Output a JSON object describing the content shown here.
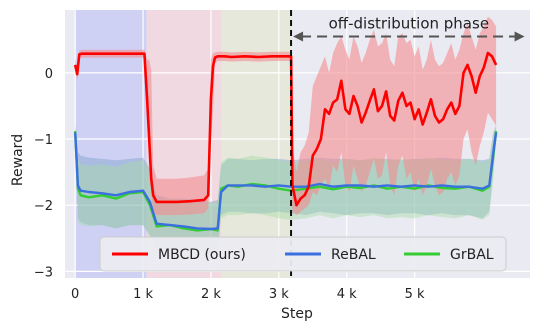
{
  "chart_data": {
    "type": "line",
    "xlabel": "Step",
    "ylabel": "Reward",
    "xlim": [
      -150,
      6700
    ],
    "ylim": [
      -3.1,
      0.95
    ],
    "xticks": [
      0,
      1000,
      2000,
      3000,
      4000,
      5000
    ],
    "xtick_labels": [
      "0",
      "1 k",
      "2 k",
      "3 k",
      "4 k",
      "5 k"
    ],
    "yticks": [
      0,
      -1,
      -2,
      -3
    ],
    "ytick_labels": [
      "0",
      "−1",
      "−2",
      "−3"
    ],
    "grid": true,
    "legend_position": "lower-center",
    "phase_shading": [
      {
        "x0": 0,
        "x1": 1050,
        "color": "#c9cbf4"
      },
      {
        "x0": 1050,
        "x1": 2150,
        "color": "#f2d6df"
      },
      {
        "x0": 2150,
        "x1": 3180,
        "color": "#e4e7d6"
      }
    ],
    "divider_x": 3180,
    "annotation": {
      "text": "off-distribution phase",
      "x0": 3180,
      "x1": 6650,
      "y": 0.55
    },
    "series": [
      {
        "name": "MBCD (ours)",
        "color": "#ff0000",
        "band_color": "#f48c8f",
        "x": [
          0,
          30,
          60,
          100,
          300,
          600,
          900,
          1020,
          1060,
          1090,
          1120,
          1150,
          1200,
          1300,
          1500,
          1700,
          1900,
          1960,
          2000,
          2030,
          2060,
          2100,
          2130,
          2160,
          2200,
          2300,
          2500,
          2700,
          2900,
          3100,
          3150,
          3180,
          3200,
          3260,
          3320,
          3380,
          3440,
          3500,
          3560,
          3620,
          3680,
          3740,
          3800,
          3860,
          3920,
          3980,
          4040,
          4100,
          4160,
          4220,
          4280,
          4340,
          4400,
          4460,
          4520,
          4580,
          4640,
          4700,
          4760,
          4820,
          4880,
          4940,
          5000,
          5060,
          5120,
          5180,
          5240,
          5300,
          5360,
          5420,
          5480,
          5540,
          5600,
          5660,
          5720,
          5780,
          5840,
          5900,
          5960,
          6020,
          6080,
          6140,
          6200
        ],
        "y": [
          0.12,
          -0.02,
          0.28,
          0.29,
          0.29,
          0.29,
          0.29,
          0.29,
          -0.4,
          -1.0,
          -1.6,
          -1.85,
          -1.95,
          -1.95,
          -1.95,
          -1.94,
          -1.92,
          -1.85,
          -0.4,
          0.1,
          0.23,
          0.25,
          0.25,
          0.25,
          0.25,
          0.24,
          0.25,
          0.24,
          0.25,
          0.25,
          0.25,
          0.25,
          -1.7,
          -2.0,
          -1.9,
          -1.85,
          -1.72,
          -1.25,
          -1.15,
          -1.0,
          -0.55,
          -0.62,
          -0.45,
          -0.4,
          -0.12,
          -0.55,
          -0.62,
          -0.35,
          -0.5,
          -0.75,
          -0.6,
          -0.42,
          -0.25,
          -0.58,
          -0.5,
          -0.28,
          -0.65,
          -0.72,
          -0.42,
          -0.3,
          -0.5,
          -0.45,
          -0.7,
          -0.55,
          -0.78,
          -0.6,
          -0.4,
          -0.65,
          -0.75,
          -0.7,
          -0.55,
          -0.45,
          -0.62,
          -0.5,
          0.0,
          0.12,
          -0.05,
          -0.3,
          -0.05,
          0.08,
          0.3,
          0.25,
          0.12
        ],
        "lower": [
          0.05,
          -0.12,
          0.22,
          0.23,
          0.23,
          0.23,
          0.23,
          0.23,
          -0.75,
          -1.3,
          -1.8,
          -2.1,
          -2.15,
          -2.15,
          -2.15,
          -2.14,
          -2.12,
          -2.05,
          -1.0,
          -0.6,
          0.15,
          0.18,
          0.18,
          0.18,
          0.18,
          0.17,
          0.18,
          0.17,
          0.18,
          0.18,
          0.18,
          0.18,
          -2.1,
          -2.15,
          -2.1,
          -2.05,
          -2.0,
          -1.8,
          -1.85,
          -1.7,
          -1.6,
          -1.75,
          -1.4,
          -1.5,
          -1.2,
          -1.7,
          -1.8,
          -1.4,
          -1.6,
          -1.8,
          -1.7,
          -1.5,
          -1.3,
          -1.6,
          -1.55,
          -1.2,
          -1.7,
          -1.85,
          -1.4,
          -1.25,
          -1.6,
          -1.5,
          -1.8,
          -1.6,
          -1.85,
          -1.7,
          -1.45,
          -1.7,
          -1.85,
          -1.8,
          -1.6,
          -1.5,
          -1.7,
          -1.55,
          -1.0,
          -0.85,
          -1.2,
          -1.4,
          -1.1,
          -0.9,
          -0.6,
          -0.7,
          -0.8
        ],
        "upper": [
          0.2,
          0.08,
          0.34,
          0.35,
          0.35,
          0.35,
          0.35,
          0.35,
          0.2,
          0.2,
          0.05,
          -1.4,
          -1.6,
          -1.6,
          -1.6,
          -1.58,
          -1.55,
          -1.45,
          0.2,
          0.3,
          0.31,
          0.32,
          0.32,
          0.32,
          0.32,
          0.31,
          0.32,
          0.31,
          0.32,
          0.32,
          0.32,
          0.32,
          -1.1,
          -1.5,
          -1.2,
          -1.1,
          -0.9,
          -0.2,
          -0.05,
          0.1,
          0.25,
          0.0,
          0.3,
          0.45,
          0.55,
          0.35,
          0.2,
          0.55,
          0.4,
          0.15,
          0.3,
          0.5,
          0.65,
          0.4,
          0.45,
          0.6,
          0.2,
          0.1,
          0.55,
          0.6,
          0.45,
          0.5,
          0.25,
          0.4,
          0.05,
          0.2,
          0.5,
          0.2,
          0.1,
          0.15,
          0.3,
          0.45,
          0.2,
          0.35,
          0.6,
          0.75,
          0.55,
          0.35,
          0.6,
          0.7,
          0.85,
          0.8,
          0.7
        ]
      },
      {
        "name": "ReBAL",
        "color": "#3b6fe0",
        "band_color": "#7ea1c9",
        "x": [
          0,
          40,
          80,
          200,
          400,
          600,
          800,
          1000,
          1100,
          1200,
          1400,
          1600,
          1800,
          2000,
          2100,
          2150,
          2250,
          2400,
          2600,
          2800,
          3000,
          3180,
          3400,
          3600,
          3800,
          4000,
          4200,
          4400,
          4600,
          4800,
          5000,
          5200,
          5400,
          5600,
          5800,
          6000,
          6100,
          6160,
          6200
        ],
        "y": [
          -0.9,
          -1.7,
          -1.78,
          -1.8,
          -1.82,
          -1.85,
          -1.8,
          -1.78,
          -1.95,
          -2.28,
          -2.3,
          -2.32,
          -2.35,
          -2.36,
          -2.35,
          -1.8,
          -1.7,
          -1.7,
          -1.7,
          -1.72,
          -1.7,
          -1.72,
          -1.72,
          -1.68,
          -1.72,
          -1.7,
          -1.7,
          -1.72,
          -1.7,
          -1.72,
          -1.7,
          -1.72,
          -1.7,
          -1.72,
          -1.72,
          -1.75,
          -1.7,
          -1.2,
          -0.9
        ],
        "lower": [
          -1.0,
          -2.2,
          -2.25,
          -2.3,
          -2.3,
          -2.35,
          -2.3,
          -2.3,
          -2.45,
          -2.65,
          -2.68,
          -2.7,
          -2.7,
          -2.72,
          -2.7,
          -2.15,
          -2.1,
          -2.1,
          -2.12,
          -2.12,
          -2.1,
          -2.12,
          -2.15,
          -2.1,
          -2.12,
          -2.15,
          -2.12,
          -2.12,
          -2.15,
          -2.12,
          -2.12,
          -2.15,
          -2.12,
          -2.15,
          -2.15,
          -2.2,
          -2.1,
          -1.5,
          -1.0
        ],
        "upper": [
          -0.8,
          -1.2,
          -1.25,
          -1.28,
          -1.3,
          -1.32,
          -1.3,
          -1.28,
          -1.45,
          -1.85,
          -1.9,
          -1.9,
          -1.92,
          -1.95,
          -1.92,
          -1.4,
          -1.3,
          -1.3,
          -1.32,
          -1.3,
          -1.3,
          -1.32,
          -1.3,
          -1.28,
          -1.3,
          -1.3,
          -1.32,
          -1.3,
          -1.3,
          -1.32,
          -1.3,
          -1.3,
          -1.28,
          -1.3,
          -1.3,
          -1.32,
          -1.3,
          -0.9,
          -0.8
        ]
      },
      {
        "name": "GrBAL",
        "color": "#33cc33",
        "band_color": "#a6dba6",
        "x": [
          0,
          40,
          80,
          200,
          400,
          600,
          800,
          1000,
          1100,
          1200,
          1400,
          1600,
          1800,
          2000,
          2100,
          2150,
          2250,
          2400,
          2600,
          2800,
          3000,
          3180,
          3400,
          3600,
          3800,
          4000,
          4200,
          4400,
          4600,
          4800,
          5000,
          5200,
          5400,
          5600,
          5800,
          6000,
          6100,
          6160,
          6200
        ],
        "y": [
          -0.88,
          -1.75,
          -1.85,
          -1.88,
          -1.85,
          -1.9,
          -1.82,
          -1.8,
          -2.0,
          -2.32,
          -2.3,
          -2.35,
          -2.38,
          -2.36,
          -2.38,
          -1.75,
          -1.7,
          -1.72,
          -1.68,
          -1.7,
          -1.75,
          -1.78,
          -1.75,
          -1.72,
          -1.76,
          -1.72,
          -1.74,
          -1.7,
          -1.75,
          -1.72,
          -1.75,
          -1.7,
          -1.74,
          -1.75,
          -1.72,
          -1.78,
          -1.72,
          -1.25,
          -0.88
        ],
        "lower": [
          -1.0,
          -2.25,
          -2.3,
          -2.32,
          -2.3,
          -2.35,
          -2.3,
          -2.3,
          -2.5,
          -2.7,
          -2.7,
          -2.72,
          -2.75,
          -2.72,
          -2.74,
          -2.2,
          -2.15,
          -2.15,
          -2.12,
          -2.15,
          -2.2,
          -2.22,
          -2.2,
          -2.15,
          -2.2,
          -2.15,
          -2.18,
          -2.15,
          -2.2,
          -2.18,
          -2.2,
          -2.15,
          -2.18,
          -2.2,
          -2.15,
          -2.22,
          -2.15,
          -1.6,
          -1.0
        ],
        "upper": [
          -0.78,
          -1.3,
          -1.38,
          -1.4,
          -1.38,
          -1.42,
          -1.35,
          -1.32,
          -1.5,
          -1.92,
          -1.9,
          -1.95,
          -1.98,
          -1.95,
          -1.98,
          -1.35,
          -1.28,
          -1.3,
          -1.25,
          -1.28,
          -1.32,
          -1.35,
          -1.32,
          -1.3,
          -1.35,
          -1.3,
          -1.32,
          -1.28,
          -1.32,
          -1.3,
          -1.32,
          -1.28,
          -1.32,
          -1.32,
          -1.3,
          -1.35,
          -1.3,
          -0.9,
          -0.78
        ]
      }
    ]
  }
}
